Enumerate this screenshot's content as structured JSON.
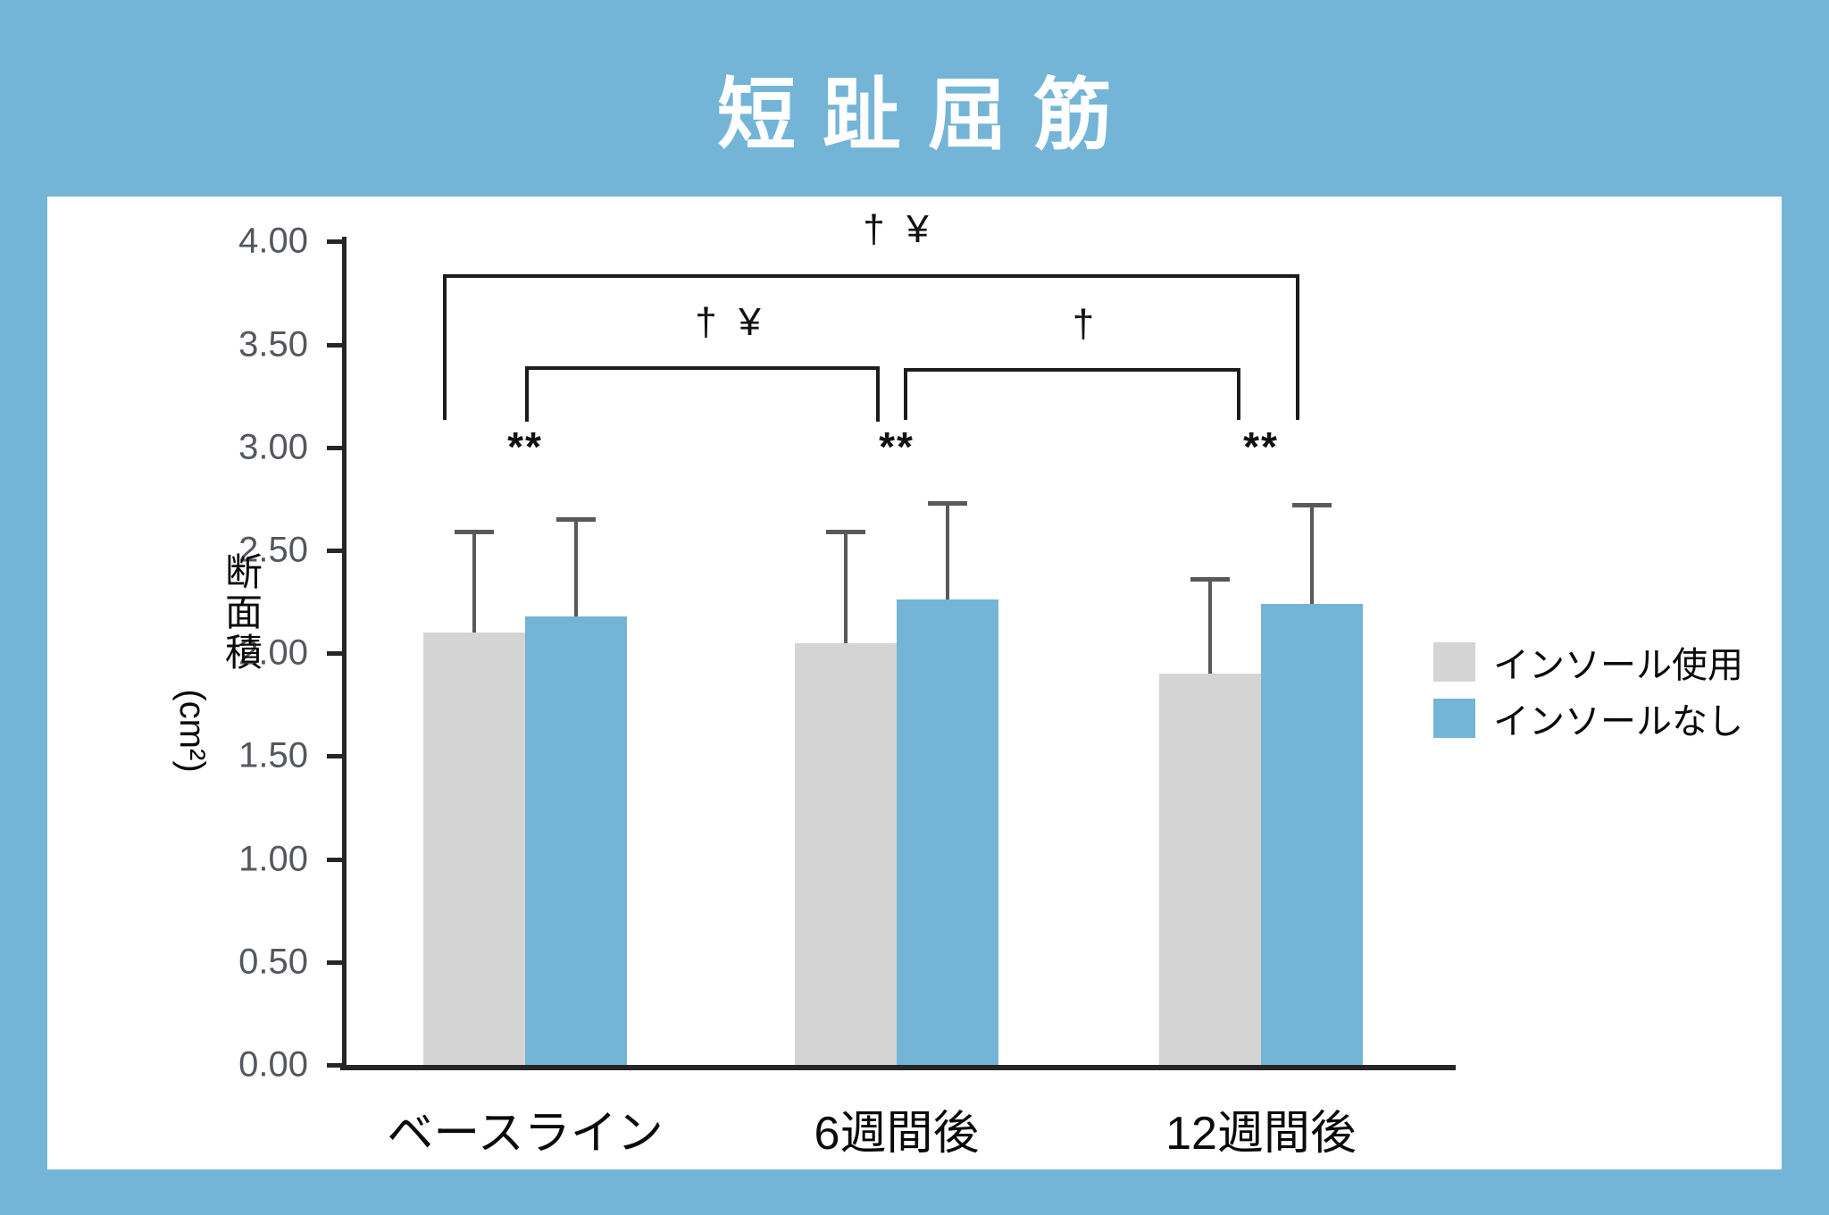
{
  "title": "短趾屈筋",
  "ylabel_unit": "(cm²)",
  "ylabel_vertical_chars": [
    "断",
    "面",
    "積"
  ],
  "chart_data": {
    "type": "bar",
    "title": "短趾屈筋",
    "categories": [
      "ベースライン",
      "6週間後",
      "12週間後"
    ],
    "series": [
      {
        "name": "インソール使用",
        "color": "#d4d4d4",
        "values": [
          2.1,
          2.05,
          1.9
        ],
        "upper_errors": [
          0.5,
          0.55,
          0.47
        ]
      },
      {
        "name": "インソールなし",
        "color": "#74b5d6",
        "values": [
          2.18,
          2.26,
          2.24
        ],
        "upper_errors": [
          0.48,
          0.48,
          0.49
        ]
      }
    ],
    "ylabel": "断面積 (cm²)",
    "ylim": [
      0,
      4
    ],
    "ytick_interval": 0.5,
    "ytick_labels": [
      "0.00",
      "0.50",
      "1.00",
      "1.50",
      "2.00",
      "2.50",
      "3.00",
      "3.50",
      "4.00"
    ],
    "grid": false,
    "legend_position": "right-middle",
    "annotations": {
      "per_group_markers": [
        "**",
        "**",
        "**"
      ],
      "comparison_brackets": [
        {
          "label": "†  ¥",
          "span": "ベースライン to 12週間後",
          "level": "outer"
        },
        {
          "label": "†  ¥",
          "span": "ベースライン to 6週間後",
          "level": "inner-left"
        },
        {
          "label": "†",
          "span": "6週間後 to 12週間後",
          "level": "inner-right"
        }
      ]
    }
  },
  "legend": {
    "items": [
      {
        "label": "インソール使用",
        "color": "#d4d4d4"
      },
      {
        "label": "インソールなし",
        "color": "#74b5d6"
      }
    ]
  },
  "colors": {
    "background": "#74b5d7",
    "panel": "#ffffff",
    "bar_gray": "#d4d4d4",
    "bar_blue": "#74b5d6",
    "axis": "#262626",
    "error_bar": "#595959",
    "tick_label": "#54585e",
    "bracket": "#1c1c1c",
    "text": "#0a0a0a",
    "title_text": "#ffffff"
  }
}
